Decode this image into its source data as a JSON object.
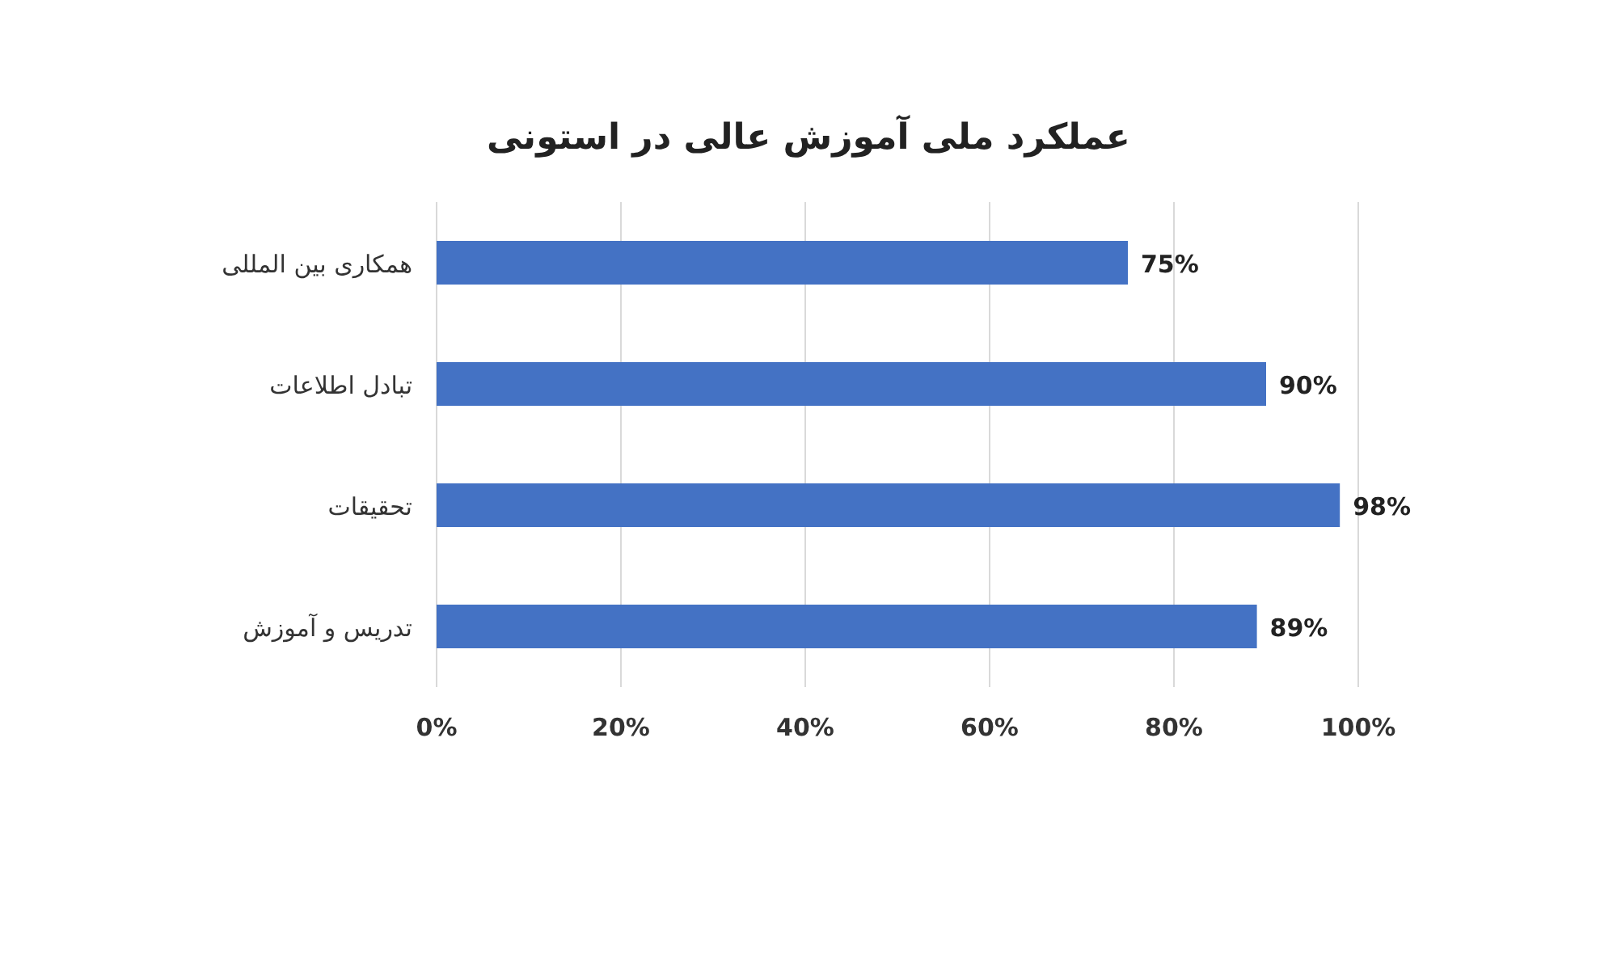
{
  "chart_data": {
    "type": "bar",
    "orientation": "horizontal",
    "title": "عملکرد ملی آموزش عالی در استونی",
    "categories": [
      "همکاری بین المللی",
      "تبادل اطلاعات",
      "تحقیقات",
      "تدریس و آموزش"
    ],
    "values": [
      75,
      90,
      98,
      89
    ],
    "value_labels": [
      "75%",
      "90%",
      "98%",
      "89%"
    ],
    "color": "#4472c4",
    "xlim": [
      0,
      100
    ],
    "xticks": [
      {
        "value": 0,
        "label": "0%"
      },
      {
        "value": 20,
        "label": "20%"
      },
      {
        "value": 40,
        "label": "40%"
      },
      {
        "value": 60,
        "label": "60%"
      },
      {
        "value": 80,
        "label": "80%"
      },
      {
        "value": 100,
        "label": "100%"
      }
    ],
    "grid": "x"
  }
}
